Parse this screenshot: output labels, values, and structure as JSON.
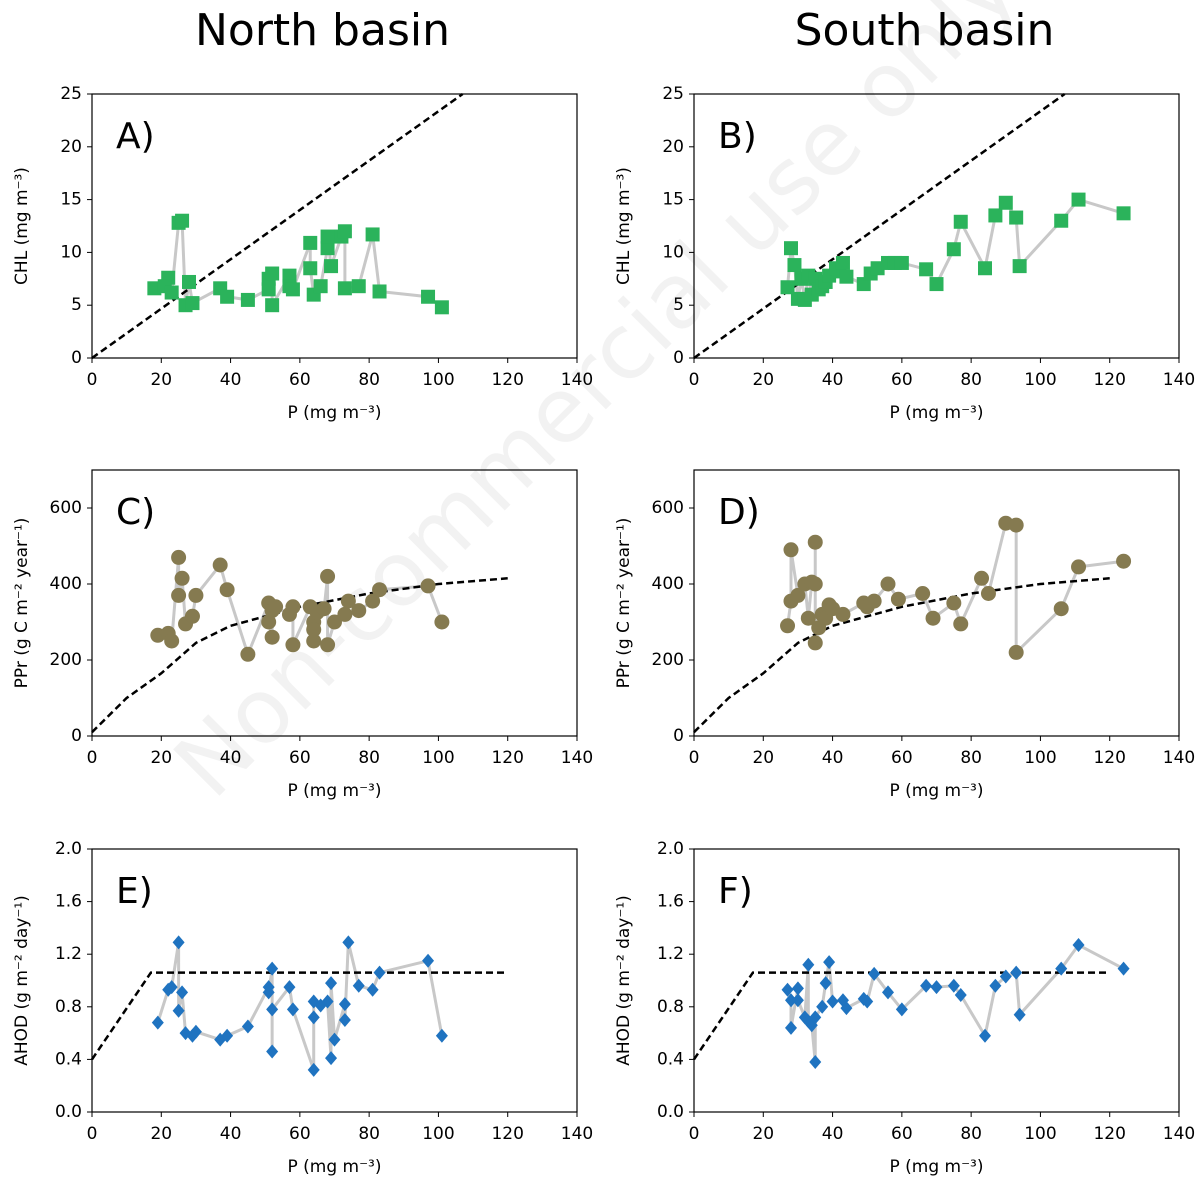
{
  "watermark": "Non-commercial use only",
  "chart_data": [
    {
      "type": "scatter",
      "title": "North basin",
      "label": "A)",
      "xlabel": "P (mg m⁻³)",
      "ylabel": "CHL (mg m⁻³)",
      "marker": "square",
      "color": "#2bb35b",
      "line_color": "#c8c8c8",
      "xlim": [
        0,
        140
      ],
      "xticks": [
        0,
        20,
        40,
        60,
        80,
        100,
        120,
        140
      ],
      "ylim": [
        0,
        25
      ],
      "yticks": [
        0,
        5,
        10,
        15,
        20,
        25
      ],
      "x": [
        18,
        22,
        21,
        23,
        25,
        26,
        27,
        28,
        29,
        37,
        39,
        45,
        51,
        51,
        52,
        52,
        57,
        57,
        58,
        63,
        63,
        64,
        66,
        68,
        68,
        69,
        72,
        73,
        73,
        77,
        81,
        83,
        97,
        101
      ],
      "y": [
        6.6,
        7.6,
        6.8,
        6.2,
        12.8,
        13,
        5,
        7.2,
        5.2,
        6.6,
        5.8,
        5.5,
        6.5,
        7.5,
        8,
        5,
        7.8,
        6.8,
        6.5,
        10.9,
        8.5,
        6,
        6.8,
        10.4,
        11.5,
        8.7,
        11.5,
        12,
        6.6,
        6.8,
        11.7,
        6.3,
        5.8,
        4.8
      ],
      "fit_x": [
        0,
        107
      ],
      "fit_y": [
        0,
        25
      ]
    },
    {
      "type": "scatter",
      "title": "South basin",
      "label": "B)",
      "xlabel": "P (mg m⁻³)",
      "ylabel": "CHL (mg m⁻³)",
      "marker": "square",
      "color": "#2bb35b",
      "line_color": "#c8c8c8",
      "xlim": [
        0,
        140
      ],
      "xticks": [
        0,
        20,
        40,
        60,
        80,
        100,
        120,
        140
      ],
      "ylim": [
        0,
        25
      ],
      "yticks": [
        0,
        5,
        10,
        15,
        20,
        25
      ],
      "x": [
        27,
        28,
        29,
        30,
        31,
        32,
        33,
        34,
        35,
        36,
        37,
        38,
        39,
        41,
        42,
        43,
        44,
        49,
        51,
        53,
        56,
        58,
        60,
        67,
        70,
        75,
        77,
        84,
        87,
        90,
        93,
        94,
        106,
        111,
        124
      ],
      "y": [
        6.7,
        10.4,
        8.8,
        5.6,
        7.5,
        5.5,
        7.8,
        6,
        7.5,
        6.5,
        6.8,
        7.2,
        7.8,
        8.5,
        8.2,
        9,
        7.7,
        7,
        8,
        8.5,
        9,
        9,
        9,
        8.4,
        7,
        10.3,
        12.9,
        8.5,
        13.5,
        14.7,
        13.3,
        8.7,
        13,
        15,
        13.7
      ],
      "fit_x": [
        0,
        107
      ],
      "fit_y": [
        0,
        25
      ]
    },
    {
      "type": "scatter",
      "label": "C)",
      "xlabel": "P (mg m⁻³)",
      "ylabel": "PPr (g C m⁻² year⁻¹)",
      "marker": "circle",
      "color": "#857a50",
      "line_color": "#c8c8c8",
      "xlim": [
        0,
        140
      ],
      "xticks": [
        0,
        20,
        40,
        60,
        80,
        100,
        120,
        140
      ],
      "ylim": [
        0,
        700
      ],
      "yticks": [
        0,
        200,
        400,
        600
      ],
      "x": [
        19,
        22,
        23,
        25,
        25,
        26,
        27,
        29,
        30,
        37,
        39,
        45,
        51,
        51,
        52,
        52,
        53,
        57,
        58,
        58,
        63,
        64,
        64,
        64,
        65,
        67,
        68,
        68,
        70,
        73,
        74,
        77,
        81,
        83,
        97,
        101
      ],
      "y": [
        265,
        270,
        250,
        470,
        370,
        415,
        295,
        315,
        370,
        450,
        385,
        215,
        350,
        300,
        260,
        330,
        340,
        320,
        340,
        240,
        340,
        300,
        280,
        250,
        325,
        335,
        420,
        240,
        300,
        320,
        355,
        330,
        355,
        385,
        395,
        300
      ],
      "fit_x": [
        0,
        10,
        20,
        30,
        40,
        60,
        80,
        100,
        120
      ],
      "fit_y": [
        10,
        100,
        165,
        245,
        290,
        340,
        375,
        400,
        415
      ]
    },
    {
      "type": "scatter",
      "label": "D)",
      "xlabel": "P (mg m⁻³)",
      "ylabel": "PPr (g C m⁻² year⁻¹)",
      "marker": "circle",
      "color": "#857a50",
      "line_color": "#c8c8c8",
      "xlim": [
        0,
        140
      ],
      "xticks": [
        0,
        20,
        40,
        60,
        80,
        100,
        120,
        140
      ],
      "ylim": [
        0,
        700
      ],
      "yticks": [
        0,
        200,
        400,
        600
      ],
      "x": [
        27,
        28,
        28,
        30,
        32,
        33,
        34,
        35,
        35,
        35,
        36,
        37,
        38,
        39,
        40,
        43,
        49,
        50,
        52,
        56,
        59,
        66,
        69,
        75,
        77,
        83,
        85,
        90,
        93,
        93,
        106,
        111,
        124
      ],
      "y": [
        290,
        355,
        490,
        370,
        400,
        310,
        405,
        400,
        510,
        245,
        285,
        320,
        310,
        345,
        335,
        320,
        350,
        340,
        355,
        400,
        360,
        375,
        310,
        350,
        295,
        415,
        375,
        560,
        555,
        220,
        335,
        445,
        460
      ],
      "fit_x": [
        0,
        10,
        20,
        30,
        40,
        60,
        80,
        100,
        120
      ],
      "fit_y": [
        10,
        100,
        165,
        245,
        290,
        340,
        375,
        400,
        415
      ]
    },
    {
      "type": "scatter",
      "label": "E)",
      "xlabel": "P (mg m⁻³)",
      "ylabel": "AHOD (g m⁻² day⁻¹)",
      "marker": "diamond",
      "color": "#1f73c0",
      "line_color": "#c8c8c8",
      "xlim": [
        0,
        140
      ],
      "xticks": [
        0,
        20,
        40,
        60,
        80,
        100,
        120,
        140
      ],
      "ylim": [
        0,
        2
      ],
      "yticks": [
        {
          "value": 0,
          "label": "0.0"
        },
        0.4,
        0.8,
        1.2,
        1.6,
        {
          "value": 2,
          "label": "2.0"
        }
      ],
      "x": [
        19,
        22,
        23,
        25,
        25,
        26,
        27,
        29,
        30,
        37,
        39,
        45,
        51,
        51,
        52,
        52,
        52,
        57,
        58,
        64,
        64,
        64,
        66,
        68,
        69,
        69,
        70,
        73,
        73,
        74,
        77,
        81,
        83,
        97,
        101
      ],
      "y": [
        0.68,
        0.93,
        0.95,
        1.29,
        0.77,
        0.91,
        0.6,
        0.58,
        0.61,
        0.55,
        0.58,
        0.65,
        0.95,
        0.91,
        1.09,
        0.46,
        0.78,
        0.95,
        0.78,
        0.32,
        0.72,
        0.84,
        0.81,
        0.84,
        0.41,
        0.98,
        0.55,
        0.82,
        0.7,
        1.29,
        0.96,
        0.93,
        1.06,
        1.15,
        0.58
      ],
      "fit_x": [
        0,
        17,
        120
      ],
      "fit_y": [
        0.4,
        1.06,
        1.06
      ]
    },
    {
      "type": "scatter",
      "label": "F)",
      "xlabel": "P (mg m⁻³)",
      "ylabel": "AHOD (g m⁻² day⁻¹)",
      "marker": "diamond",
      "color": "#1f73c0",
      "line_color": "#c8c8c8",
      "xlim": [
        0,
        140
      ],
      "xticks": [
        0,
        20,
        40,
        60,
        80,
        100,
        120,
        140
      ],
      "ylim": [
        0,
        2
      ],
      "yticks": [
        {
          "value": 0,
          "label": "0.0"
        },
        0.4,
        0.8,
        1.2,
        1.6,
        {
          "value": 2,
          "label": "2.0"
        }
      ],
      "x": [
        27,
        28,
        28,
        30,
        30,
        32,
        33,
        33,
        34,
        35,
        35,
        37,
        38,
        39,
        40,
        43,
        44,
        49,
        50,
        52,
        56,
        60,
        67,
        70,
        75,
        77,
        84,
        87,
        90,
        93,
        94,
        106,
        111,
        124
      ],
      "y": [
        0.93,
        0.85,
        0.64,
        0.94,
        0.85,
        0.72,
        1.12,
        0.69,
        0.66,
        0.38,
        0.72,
        0.8,
        0.98,
        1.14,
        0.84,
        0.85,
        0.79,
        0.86,
        0.84,
        1.05,
        0.91,
        0.78,
        0.96,
        0.95,
        0.96,
        0.89,
        0.58,
        0.96,
        1.03,
        1.06,
        0.74,
        1.09,
        1.27,
        1.09
      ],
      "fit_x": [
        0,
        17,
        120
      ],
      "fit_y": [
        0.4,
        1.06,
        1.06
      ]
    }
  ]
}
